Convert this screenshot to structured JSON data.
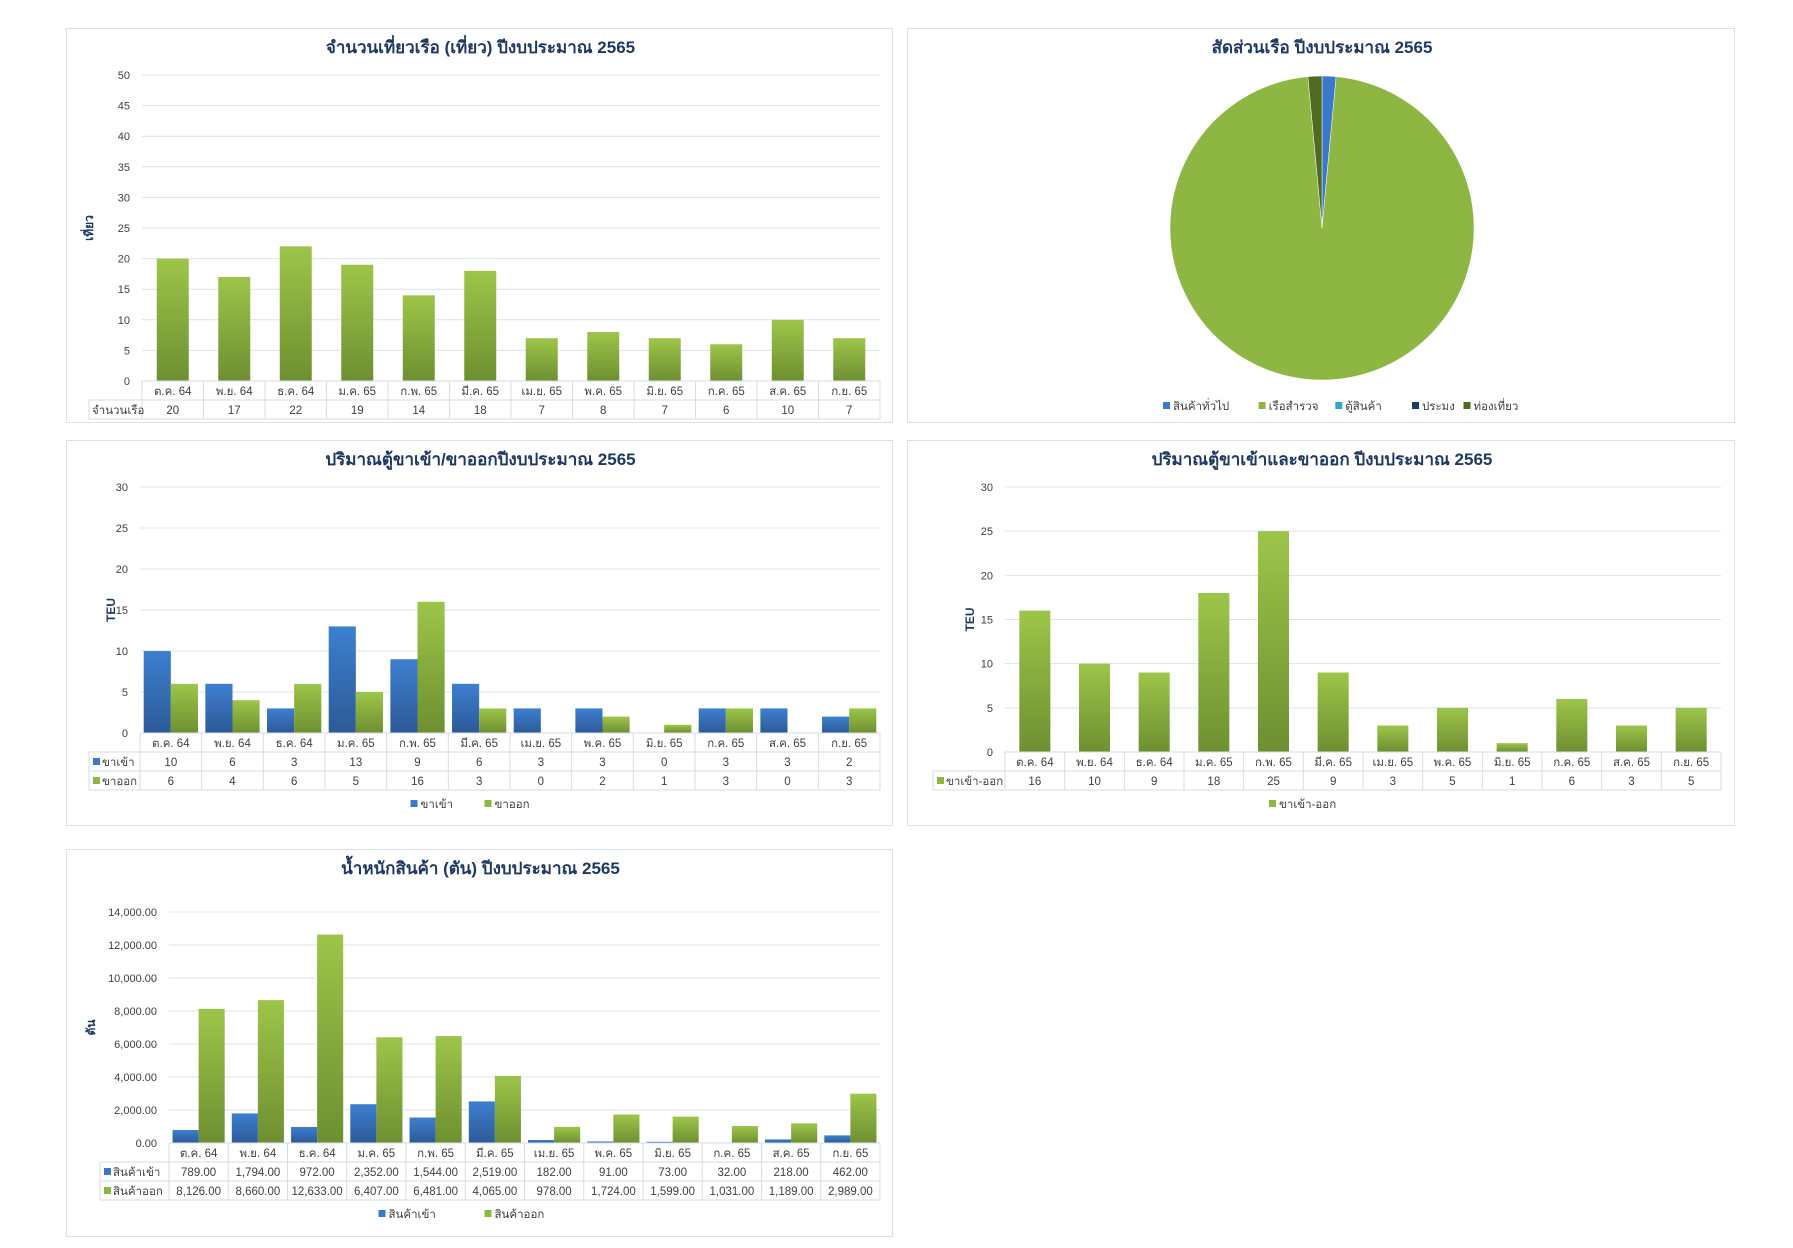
{
  "colors": {
    "green": "#8db643",
    "green_dark": "#6b8c2f",
    "blue": "#3a78c9",
    "blue_dark": "#2c5b9c",
    "teal": "#2ea6c9",
    "navy": "#1f3864",
    "olive": "#4e6b20",
    "grid": "#d9e4f0"
  },
  "chart_data": [
    {
      "id": "trips",
      "type": "bar",
      "title": "จำนวนเที่ยวเรือ (เที่ยว) ปีงบประมาณ 2565",
      "ylabel": "เที่ยว",
      "ylim": [
        0,
        50
      ],
      "yticks": [
        0,
        5,
        10,
        15,
        20,
        25,
        30,
        35,
        40,
        45,
        50
      ],
      "ytick_labels": [
        "0",
        "5",
        "10",
        "15",
        "20",
        "25",
        "30",
        "35",
        "40",
        "45",
        "50"
      ],
      "grid": true,
      "data_table": true,
      "legend": "none",
      "categories": [
        "ต.ค. 64",
        "พ.ย. 64",
        "ธ.ค. 64",
        "ม.ค. 65",
        "ก.พ. 65",
        "มี.ค. 65",
        "เม.ย. 65",
        "พ.ค. 65",
        "มิ.ย. 65",
        "ก.ค. 65",
        "ส.ค. 65",
        "ก.ย. 65"
      ],
      "series": [
        {
          "name": "จำนวนเรือ",
          "color": "green",
          "values": [
            20,
            17,
            22,
            19,
            14,
            18,
            7,
            8,
            7,
            6,
            10,
            7
          ],
          "labels": [
            "20",
            "17",
            "22",
            "19",
            "14",
            "18",
            "7",
            "8",
            "7",
            "6",
            "10",
            "7"
          ]
        }
      ]
    },
    {
      "id": "share",
      "type": "pie",
      "title": "สัดส่วนเรือ ปีงบประมาณ 2565",
      "legend": "bottom",
      "slices": [
        {
          "name": "สินค้าทั่วไป",
          "color": "blue",
          "value": 2
        },
        {
          "name": "เรือสำรวจ",
          "color": "green",
          "value": 131
        },
        {
          "name": "ตู้สินค้า",
          "color": "teal",
          "value": 0
        },
        {
          "name": "ประมง",
          "color": "navy",
          "value": 0
        },
        {
          "name": "ท่องเที่ยว",
          "color": "olive",
          "value": 2
        }
      ]
    },
    {
      "id": "teu_split",
      "type": "bar",
      "title": "ปริมาณตู้ขาเข้า/ขาออกปีงบประมาณ 2565",
      "ylabel": "TEU",
      "ylim": [
        0,
        30
      ],
      "yticks": [
        0,
        5,
        10,
        15,
        20,
        25,
        30
      ],
      "ytick_labels": [
        "0",
        "5",
        "10",
        "15",
        "20",
        "25",
        "30"
      ],
      "grid": true,
      "data_table": true,
      "legend": "bottom",
      "categories": [
        "ต.ค. 64",
        "พ.ย. 64",
        "ธ.ค. 64",
        "ม.ค. 65",
        "ก.พ. 65",
        "มี.ค. 65",
        "เม.ย. 65",
        "พ.ค. 65",
        "มิ.ย. 65",
        "ก.ค. 65",
        "ส.ค. 65",
        "ก.ย. 65"
      ],
      "series": [
        {
          "name": "ขาเข้า",
          "color": "blue",
          "values": [
            10,
            6,
            3,
            13,
            9,
            6,
            3,
            3,
            0,
            3,
            3,
            2
          ],
          "labels": [
            "10",
            "6",
            "3",
            "13",
            "9",
            "6",
            "3",
            "3",
            "0",
            "3",
            "3",
            "2"
          ]
        },
        {
          "name": "ขาออก",
          "color": "green",
          "values": [
            6,
            4,
            6,
            5,
            16,
            3,
            0,
            2,
            1,
            3,
            0,
            3
          ],
          "labels": [
            "6",
            "4",
            "6",
            "5",
            "16",
            "3",
            "0",
            "2",
            "1",
            "3",
            "0",
            "3"
          ]
        }
      ]
    },
    {
      "id": "teu_total",
      "type": "bar",
      "title": "ปริมาณตู้ขาเข้าและขาออก ปีงบประมาณ 2565",
      "ylabel": "TEU",
      "ylim": [
        0,
        30
      ],
      "yticks": [
        0,
        5,
        10,
        15,
        20,
        25,
        30
      ],
      "ytick_labels": [
        "0",
        "5",
        "10",
        "15",
        "20",
        "25",
        "30"
      ],
      "grid": true,
      "data_table": true,
      "legend": "bottom",
      "categories": [
        "ต.ค. 64",
        "พ.ย. 64",
        "ธ.ค. 64",
        "ม.ค. 65",
        "ก.พ. 65",
        "มี.ค. 65",
        "เม.ย. 65",
        "พ.ค. 65",
        "มิ.ย. 65",
        "ก.ค. 65",
        "ส.ค. 65",
        "ก.ย. 65"
      ],
      "series": [
        {
          "name": "ขาเข้า-ออก",
          "color": "green",
          "values": [
            16,
            10,
            9,
            18,
            25,
            9,
            3,
            5,
            1,
            6,
            3,
            5
          ],
          "labels": [
            "16",
            "10",
            "9",
            "18",
            "25",
            "9",
            "3",
            "5",
            "1",
            "6",
            "3",
            "5"
          ]
        }
      ]
    },
    {
      "id": "cargo",
      "type": "bar",
      "title": "น้ำหนักสินค้า (ตัน) ปีงบประมาณ 2565",
      "ylabel": "ตัน",
      "ylim": [
        0,
        14000
      ],
      "yticks": [
        0,
        2000,
        4000,
        6000,
        8000,
        10000,
        12000,
        14000
      ],
      "ytick_labels": [
        "0.00",
        "2,000.00",
        "4,000.00",
        "6,000.00",
        "8,000.00",
        "10,000.00",
        "12,000.00",
        "14,000.00"
      ],
      "grid": true,
      "data_table": true,
      "legend": "bottom",
      "categories": [
        "ต.ค. 64",
        "พ.ย. 64",
        "ธ.ค. 64",
        "ม.ค. 65",
        "ก.พ. 65",
        "มี.ค. 65",
        "เม.ย. 65",
        "พ.ค. 65",
        "มิ.ย. 65",
        "ก.ค. 65",
        "ส.ค. 65",
        "ก.ย. 65"
      ],
      "series": [
        {
          "name": "สินค้าเข้า",
          "color": "blue",
          "values": [
            789,
            1794,
            972,
            2352,
            1544,
            2519,
            182,
            91,
            73,
            32,
            218,
            462
          ],
          "labels": [
            "789.00",
            "1,794.00",
            "972.00",
            "2,352.00",
            "1,544.00",
            "2,519.00",
            "182.00",
            "91.00",
            "73.00",
            "32.00",
            "218.00",
            "462.00"
          ]
        },
        {
          "name": "สินค้าออก",
          "color": "green",
          "values": [
            8126,
            8660,
            12633,
            6407,
            6481,
            4065,
            978,
            1724,
            1599,
            1031,
            1189,
            2989
          ],
          "labels": [
            "8,126.00",
            "8,660.00",
            "12,633.00",
            "6,407.00",
            "6,481.00",
            "4,065.00",
            "978.00",
            "1,724.00",
            "1,599.00",
            "1,031.00",
            "1,189.00",
            "2,989.00"
          ]
        }
      ]
    }
  ]
}
